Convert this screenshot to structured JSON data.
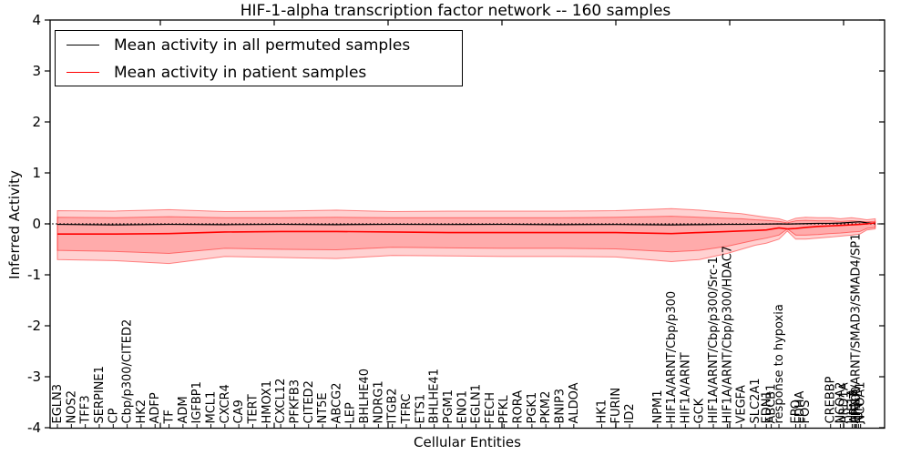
{
  "figure": {
    "title": "HIF-1-alpha transcription factor network -- 160 samples"
  },
  "legend": {
    "entries": [
      {
        "label": "Mean activity in all permuted samples",
        "color": "#000000"
      },
      {
        "label": "Mean activity in patient samples",
        "color": "#ff0000"
      }
    ],
    "position": "upper left"
  },
  "chart_data": {
    "type": "line",
    "title": "HIF-1-alpha transcription factor network -- 160 samples",
    "xlabel": "Cellular Entities",
    "ylabel": "Inferred Activity",
    "ylim": [
      -4,
      4
    ],
    "yticks": [
      -4,
      -3,
      -2,
      -1,
      0,
      1,
      2,
      3,
      4
    ],
    "grid": false,
    "legend_position": "upper left",
    "zero_reference_line": {
      "y": 0,
      "style": "dotted",
      "color": "#000000"
    },
    "categories": [
      {
        "label": "EGLN3",
        "pos": 0
      },
      {
        "label": "NOS2",
        "pos": 1
      },
      {
        "label": "TFF3",
        "pos": 2
      },
      {
        "label": "SERPINE1",
        "pos": 3
      },
      {
        "label": "CP",
        "pos": 4
      },
      {
        "label": "Cbp/p300/CITED2",
        "pos": 5
      },
      {
        "label": "HK2",
        "pos": 6
      },
      {
        "label": "ADFP",
        "pos": 7
      },
      {
        "label": "TF",
        "pos": 8
      },
      {
        "label": "ADM",
        "pos": 9
      },
      {
        "label": "IGFBP1",
        "pos": 10
      },
      {
        "label": "MCL1",
        "pos": 11
      },
      {
        "label": "CXCR4",
        "pos": 12
      },
      {
        "label": "CA9",
        "pos": 13
      },
      {
        "label": "TERT",
        "pos": 14
      },
      {
        "label": "HMOX1",
        "pos": 15
      },
      {
        "label": "CXCL12",
        "pos": 16
      },
      {
        "label": "PFKFB3",
        "pos": 17
      },
      {
        "label": "CITED2",
        "pos": 18
      },
      {
        "label": "NT5E",
        "pos": 19
      },
      {
        "label": "ABCG2",
        "pos": 20
      },
      {
        "label": "LEP",
        "pos": 21
      },
      {
        "label": "BHLHE40",
        "pos": 22
      },
      {
        "label": "NDRG1",
        "pos": 23
      },
      {
        "label": "ITGB2",
        "pos": 24
      },
      {
        "label": "TFRC",
        "pos": 25
      },
      {
        "label": "ETS1",
        "pos": 26
      },
      {
        "label": "BHLHE41",
        "pos": 27
      },
      {
        "label": "PGM1",
        "pos": 28
      },
      {
        "label": "ENO1",
        "pos": 29
      },
      {
        "label": "EGLN1",
        "pos": 30
      },
      {
        "label": "FECH",
        "pos": 31
      },
      {
        "label": "PFKL",
        "pos": 32
      },
      {
        "label": "RORA",
        "pos": 33
      },
      {
        "label": "PGK1",
        "pos": 34
      },
      {
        "label": "PKM2",
        "pos": 35
      },
      {
        "label": "BNIP3",
        "pos": 36
      },
      {
        "label": "ALDOA",
        "pos": 37
      },
      {
        "label": "HK1",
        "pos": 39
      },
      {
        "label": "FURIN",
        "pos": 40
      },
      {
        "label": "ID2",
        "pos": 41
      },
      {
        "label": "NPM1",
        "pos": 43
      },
      {
        "label": "HIF1A/ARNT/Cbp/p300",
        "pos": 44
      },
      {
        "label": "HIF1A/ARNT",
        "pos": 45
      },
      {
        "label": "GCK",
        "pos": 46
      },
      {
        "label": "HIF1A/ARNT/Cbp/p300/Src-1",
        "pos": 47
      },
      {
        "label": "HIF1A/ARNT/Cbp/p300/HDAC7",
        "pos": 48
      },
      {
        "label": "VEGFA",
        "pos": 49
      },
      {
        "label": "SLC2A1",
        "pos": 50
      },
      {
        "label": "EDN1",
        "pos": 50.8
      },
      {
        "label": "ABCB1",
        "pos": 51.15
      },
      {
        "label": "response to hypoxia",
        "pos": 51.7
      },
      {
        "label": "EPO",
        "pos": 52.9
      },
      {
        "label": "LDHA",
        "pos": 53.2
      },
      {
        "label": "FOS",
        "pos": 53.6
      },
      {
        "label": "CREBBP",
        "pos": 55.4
      },
      {
        "label": "NCOA2",
        "pos": 56.1
      },
      {
        "label": "ARD1A",
        "pos": 56.35
      },
      {
        "label": "HIF1A",
        "pos": 56.95
      },
      {
        "label": "ARNT",
        "pos": 57.1
      },
      {
        "label": "HIF1A/ARNT/SMAD3/SMAD4/SP1",
        "pos": 57.2
      },
      {
        "label": "EP300",
        "pos": 57.25
      },
      {
        "label": "JUN",
        "pos": 57.4
      },
      {
        "label": "NCOA1",
        "pos": 57.55
      }
    ],
    "x": [
      0,
      4,
      8,
      12,
      16,
      20,
      24,
      28,
      32,
      36,
      40,
      44,
      46,
      48,
      49,
      50,
      50.8,
      51.7,
      52.3,
      52.9,
      53.6,
      54.5,
      55.4,
      56.1,
      56.9,
      57.5,
      58,
      58.6
    ],
    "series": [
      {
        "name": "Mean activity in all permuted samples",
        "color": "#000000",
        "values": [
          -0.01,
          -0.02,
          -0.01,
          -0.015,
          -0.01,
          -0.015,
          -0.01,
          -0.012,
          -0.01,
          -0.015,
          -0.012,
          -0.02,
          -0.015,
          -0.01,
          -0.01,
          -0.008,
          -0.005,
          0.0,
          -0.005,
          0.0,
          0.005,
          0.01,
          0.01,
          0.015,
          0.03,
          0.04,
          0.02,
          0.01
        ]
      },
      {
        "name": "Mean activity in patient samples",
        "color": "#ff0000",
        "values": [
          -0.2,
          -0.2,
          -0.19,
          -0.16,
          -0.15,
          -0.15,
          -0.16,
          -0.17,
          -0.17,
          -0.17,
          -0.17,
          -0.19,
          -0.17,
          -0.15,
          -0.14,
          -0.13,
          -0.12,
          -0.08,
          -0.1,
          -0.09,
          -0.07,
          -0.05,
          -0.04,
          -0.03,
          -0.02,
          -0.01,
          0.0,
          0.02
        ]
      }
    ],
    "bands": [
      {
        "name": "patient-samples-std-outer",
        "color": "#ff0000",
        "alpha": 0.18,
        "upper": [
          0.26,
          0.25,
          0.28,
          0.24,
          0.25,
          0.27,
          0.24,
          0.25,
          0.25,
          0.25,
          0.26,
          0.3,
          0.27,
          0.22,
          0.2,
          0.16,
          0.13,
          0.1,
          0.05,
          0.11,
          0.13,
          0.12,
          0.12,
          0.1,
          0.12,
          0.1,
          0.08,
          0.1
        ],
        "lower": [
          -0.7,
          -0.72,
          -0.78,
          -0.64,
          -0.66,
          -0.68,
          -0.62,
          -0.63,
          -0.64,
          -0.64,
          -0.65,
          -0.74,
          -0.7,
          -0.58,
          -0.5,
          -0.42,
          -0.38,
          -0.3,
          -0.14,
          -0.3,
          -0.3,
          -0.28,
          -0.26,
          -0.24,
          -0.22,
          -0.2,
          -0.12,
          -0.1
        ]
      },
      {
        "name": "patient-samples-std-inner",
        "color": "#ff0000",
        "alpha": 0.18,
        "upper": [
          0.13,
          0.12,
          0.14,
          0.12,
          0.12,
          0.13,
          0.12,
          0.12,
          0.12,
          0.12,
          0.13,
          0.15,
          0.13,
          0.11,
          0.1,
          0.08,
          0.07,
          0.05,
          0.02,
          0.06,
          0.07,
          0.06,
          0.06,
          0.05,
          0.06,
          0.05,
          0.04,
          0.05
        ],
        "lower": [
          -0.52,
          -0.54,
          -0.58,
          -0.48,
          -0.5,
          -0.51,
          -0.46,
          -0.47,
          -0.48,
          -0.48,
          -0.49,
          -0.55,
          -0.52,
          -0.44,
          -0.38,
          -0.32,
          -0.28,
          -0.22,
          -0.1,
          -0.22,
          -0.22,
          -0.21,
          -0.19,
          -0.18,
          -0.16,
          -0.15,
          -0.09,
          -0.07
        ]
      }
    ]
  }
}
